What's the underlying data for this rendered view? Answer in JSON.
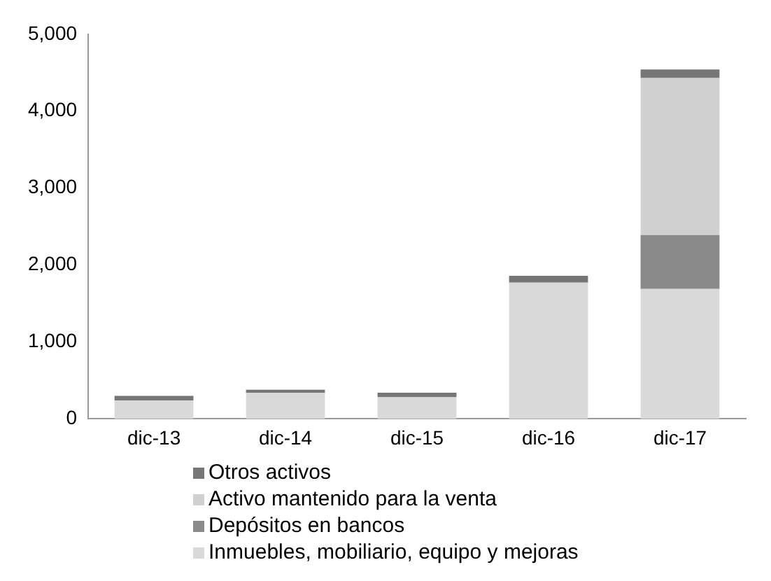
{
  "chart_data": {
    "type": "bar",
    "stacked": true,
    "categories": [
      "dic-13",
      "dic-14",
      "dic-15",
      "dic-16",
      "dic-17"
    ],
    "series": [
      {
        "name": "Inmuebles, mobiliario, equipo y mejoras",
        "color": "#d9d9d9",
        "values": [
          240,
          340,
          280,
          1770,
          1690
        ]
      },
      {
        "name": "Depósitos en bancos",
        "color": "#8a8a8a",
        "values": [
          0,
          0,
          0,
          0,
          700
        ]
      },
      {
        "name": "Activo mantenido para la venta",
        "color": "#d0d0d0",
        "values": [
          0,
          0,
          0,
          0,
          2040
        ]
      },
      {
        "name": "Otros activos",
        "color": "#767676",
        "values": [
          60,
          40,
          60,
          90,
          110
        ]
      }
    ],
    "ylim": [
      0,
      5000
    ],
    "yticks": [
      {
        "value": 0,
        "label": "0"
      },
      {
        "value": 1000,
        "label": "1,000"
      },
      {
        "value": 2000,
        "label": "2,000"
      },
      {
        "value": 3000,
        "label": "3,000"
      },
      {
        "value": 4000,
        "label": "4,000"
      },
      {
        "value": 5000,
        "label": "5,000"
      }
    ],
    "grid": false,
    "legend": "bottom"
  }
}
